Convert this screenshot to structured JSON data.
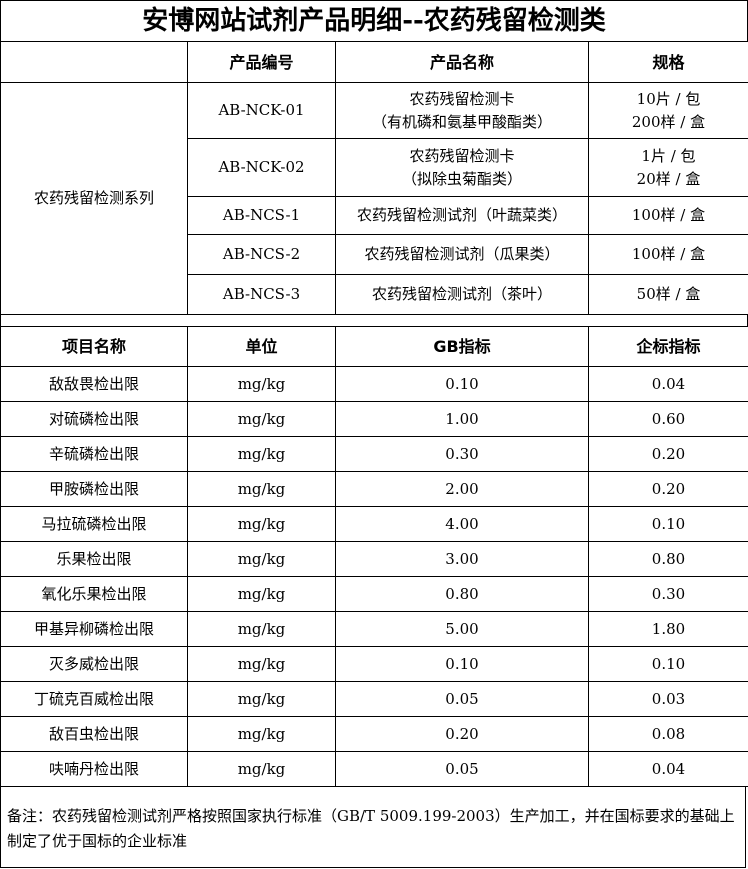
{
  "title": "安博网站试剂产品明细--农药残留检测类",
  "products": {
    "headers": [
      "",
      "产品编号",
      "产品名称",
      "规格"
    ],
    "series": "农药残留检测系列",
    "rows": [
      {
        "code": "AB-NCK-01",
        "name": [
          "农药残留检测卡",
          "（有机磷和氨基甲酸酯类）"
        ],
        "spec": [
          "10片 / 包",
          "200样 / 盒"
        ]
      },
      {
        "code": "AB-NCK-02",
        "name": [
          "农药残留检测卡",
          "（拟除虫菊酯类）"
        ],
        "spec": [
          "1片 / 包",
          "20样 / 盒"
        ]
      },
      {
        "code": "AB-NCS-1",
        "name": [
          "农药残留检测试剂（叶蔬菜类）"
        ],
        "spec": [
          "100样 / 盒"
        ]
      },
      {
        "code": "AB-NCS-2",
        "name": [
          "农药残留检测试剂（瓜果类）"
        ],
        "spec": [
          "100样 / 盒"
        ]
      },
      {
        "code": "AB-NCS-3",
        "name": [
          "农药残留检测试剂（茶叶）"
        ],
        "spec": [
          "50样 / 盒"
        ]
      }
    ]
  },
  "limits": {
    "headers": [
      "项目名称",
      "单位",
      "GB指标",
      "企标指标"
    ],
    "rows": [
      [
        "敌敌畏检出限",
        "mg/kg",
        "0.10",
        "0.04"
      ],
      [
        "对硫磷检出限",
        "mg/kg",
        "1.00",
        "0.60"
      ],
      [
        "辛硫磷检出限",
        "mg/kg",
        "0.30",
        "0.20"
      ],
      [
        "甲胺磷检出限",
        "mg/kg",
        "2.00",
        "0.20"
      ],
      [
        "马拉硫磷检出限",
        "mg/kg",
        "4.00",
        "0.10"
      ],
      [
        "乐果检出限",
        "mg/kg",
        "3.00",
        "0.80"
      ],
      [
        "氧化乐果检出限",
        "mg/kg",
        "0.80",
        "0.30"
      ],
      [
        "甲基异柳磷检出限",
        "mg/kg",
        "5.00",
        "1.80"
      ],
      [
        "灭多威检出限",
        "mg/kg",
        "0.10",
        "0.10"
      ],
      [
        "丁硫克百威检出限",
        "mg/kg",
        "0.05",
        "0.03"
      ],
      [
        "敌百虫检出限",
        "mg/kg",
        "0.20",
        "0.08"
      ],
      [
        "呋喃丹检出限",
        "mg/kg",
        "0.05",
        "0.04"
      ]
    ]
  },
  "note": "备注：农药残留检测试剂严格按照国家执行标准（GB/T 5009.199-2003）生产加工，并在国标要求的基础上制定了优于国标的企业标准"
}
